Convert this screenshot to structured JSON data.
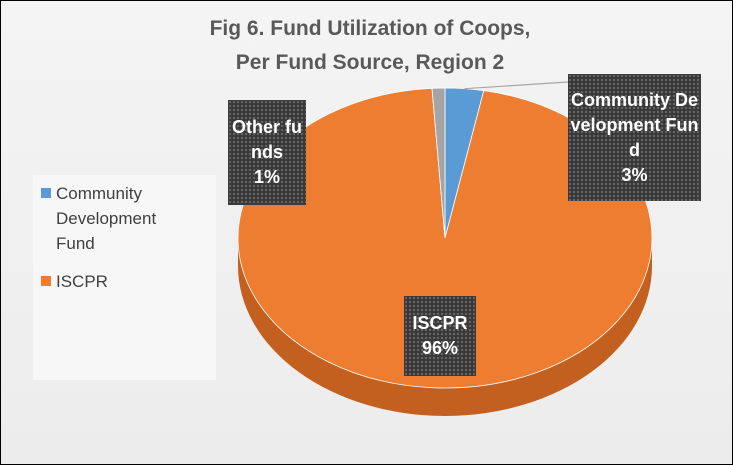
{
  "chart_data": {
    "type": "pie",
    "title": "Fig 6. Fund Utilization of Coops, Per Fund Source, Region 2",
    "categories": [
      "Community Development Fund",
      "ISCPR",
      "Other funds"
    ],
    "values": [
      3,
      96,
      1
    ],
    "value_labels": [
      "3%",
      "96%",
      "1%"
    ],
    "colors": [
      "#5b9bd5",
      "#ed7d31",
      "#a5a5a5"
    ],
    "legend": "left"
  }
}
